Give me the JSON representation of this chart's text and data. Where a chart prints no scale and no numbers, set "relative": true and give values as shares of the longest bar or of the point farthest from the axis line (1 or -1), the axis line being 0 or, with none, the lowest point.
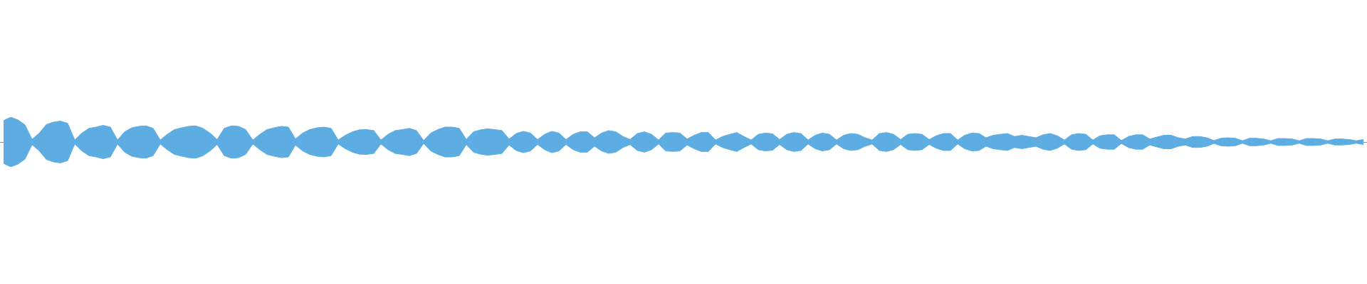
{
  "chart_data": {
    "type": "area",
    "relative": true,
    "marker": "none",
    "categories": [
      null,
      null,
      null,
      null,
      null,
      null,
      null,
      null,
      null,
      null,
      null,
      null,
      null,
      null,
      null,
      null,
      null,
      null,
      null,
      null,
      null,
      null,
      null,
      null,
      null,
      null,
      null,
      null,
      null,
      null,
      null,
      null,
      null,
      null,
      null,
      null,
      null,
      null,
      null,
      null,
      null,
      null,
      null,
      null,
      null,
      null,
      null,
      null,
      null,
      null,
      null,
      null,
      null,
      null,
      null,
      null,
      null,
      null,
      null,
      null,
      null,
      null,
      null,
      null,
      null,
      null,
      null,
      null,
      null,
      null,
      null,
      null,
      null,
      null,
      null,
      null,
      null,
      null,
      null,
      null,
      null,
      null,
      null,
      null,
      null,
      null,
      null,
      null,
      null,
      null,
      null,
      null,
      null,
      null,
      null,
      null,
      null,
      null,
      null,
      null,
      null,
      null,
      null,
      null,
      null,
      null,
      null,
      null,
      null,
      null,
      null,
      null,
      null,
      null,
      null,
      null,
      null,
      null,
      null,
      null,
      null,
      null,
      null,
      null,
      null,
      null,
      null,
      null,
      null,
      null,
      null,
      null,
      null,
      null,
      null,
      null,
      null,
      null,
      null,
      null,
      null,
      null,
      null,
      null,
      null,
      null,
      null,
      null,
      null,
      null,
      null,
      null,
      null,
      null,
      null,
      null,
      null,
      null,
      null,
      null,
      null,
      null,
      null,
      null,
      null,
      null,
      null,
      null,
      null,
      null,
      null,
      null,
      null,
      null,
      null,
      null,
      null,
      null,
      null,
      null,
      null,
      null,
      null,
      null,
      null,
      null,
      null,
      null,
      null,
      null,
      null,
      null
    ],
    "series": [
      {
        "color": "#5dade2",
        "values": [
          0.86,
          1.0,
          0.89,
          0.69,
          0.11,
          0.35,
          0.7,
          0.8,
          0.84,
          0.75,
          0.08,
          0.36,
          0.55,
          0.6,
          0.67,
          0.6,
          0.08,
          0.41,
          0.57,
          0.63,
          0.65,
          0.55,
          0.08,
          0.31,
          0.5,
          0.57,
          0.63,
          0.65,
          0.55,
          0.36,
          0.1,
          0.55,
          0.65,
          0.63,
          0.5,
          0.08,
          0.31,
          0.5,
          0.57,
          0.63,
          0.6,
          0.12,
          0.36,
          0.5,
          0.57,
          0.6,
          0.55,
          0.08,
          0.27,
          0.41,
          0.49,
          0.5,
          0.46,
          0.08,
          0.31,
          0.46,
          0.5,
          0.55,
          0.46,
          0.06,
          0.36,
          0.5,
          0.6,
          0.6,
          0.55,
          0.1,
          0.41,
          0.49,
          0.53,
          0.5,
          0.46,
          0.12,
          0.34,
          0.43,
          0.36,
          0.1,
          0.31,
          0.43,
          0.36,
          0.1,
          0.31,
          0.41,
          0.41,
          0.17,
          0.36,
          0.46,
          0.41,
          0.22,
          0.1,
          0.34,
          0.41,
          0.31,
          0.08,
          0.36,
          0.38,
          0.36,
          0.12,
          0.27,
          0.38,
          0.38,
          0.08,
          0.22,
          0.31,
          0.38,
          0.22,
          0.08,
          0.31,
          0.36,
          0.33,
          0.1,
          0.31,
          0.38,
          0.34,
          0.08,
          0.27,
          0.36,
          0.31,
          0.08,
          0.27,
          0.34,
          0.31,
          0.17,
          0.08,
          0.34,
          0.38,
          0.31,
          0.1,
          0.31,
          0.34,
          0.31,
          0.1,
          0.25,
          0.34,
          0.34,
          0.08,
          0.27,
          0.36,
          0.34,
          0.17,
          0.27,
          0.31,
          0.34,
          0.22,
          0.27,
          0.22,
          0.17,
          0.29,
          0.34,
          0.25,
          0.08,
          0.29,
          0.34,
          0.31,
          0.08,
          0.25,
          0.29,
          0.29,
          0.06,
          0.22,
          0.29,
          0.29,
          0.12,
          0.2,
          0.27,
          0.27,
          0.17,
          0.12,
          0.22,
          0.22,
          0.17,
          0.06,
          0.15,
          0.17,
          0.15,
          0.05,
          0.15,
          0.15,
          0.12,
          0.05,
          0.14,
          0.14,
          0.12,
          0.05,
          0.14,
          0.14,
          0.12,
          0.05,
          0.12,
          0.12,
          0.1,
          0.05,
          0.1
        ]
      },
      {
        "color": "#5dade2",
        "values": [
          -0.86,
          -1.0,
          -0.89,
          -0.69,
          -0.11,
          -0.35,
          -0.7,
          -0.8,
          -0.84,
          -0.75,
          -0.08,
          -0.36,
          -0.55,
          -0.6,
          -0.67,
          -0.6,
          -0.08,
          -0.41,
          -0.57,
          -0.63,
          -0.65,
          -0.55,
          -0.08,
          -0.31,
          -0.5,
          -0.57,
          -0.63,
          -0.65,
          -0.55,
          -0.36,
          -0.1,
          -0.55,
          -0.65,
          -0.63,
          -0.5,
          -0.08,
          -0.31,
          -0.5,
          -0.57,
          -0.63,
          -0.6,
          -0.12,
          -0.36,
          -0.5,
          -0.57,
          -0.6,
          -0.55,
          -0.08,
          -0.27,
          -0.41,
          -0.49,
          -0.5,
          -0.46,
          -0.08,
          -0.31,
          -0.46,
          -0.5,
          -0.55,
          -0.46,
          -0.06,
          -0.36,
          -0.5,
          -0.6,
          -0.6,
          -0.55,
          -0.1,
          -0.41,
          -0.49,
          -0.53,
          -0.5,
          -0.46,
          -0.12,
          -0.34,
          -0.43,
          -0.36,
          -0.1,
          -0.31,
          -0.43,
          -0.36,
          -0.1,
          -0.31,
          -0.41,
          -0.41,
          -0.17,
          -0.36,
          -0.46,
          -0.41,
          -0.22,
          -0.1,
          -0.34,
          -0.41,
          -0.31,
          -0.08,
          -0.36,
          -0.38,
          -0.36,
          -0.12,
          -0.27,
          -0.38,
          -0.38,
          -0.08,
          -0.22,
          -0.31,
          -0.38,
          -0.22,
          -0.08,
          -0.31,
          -0.36,
          -0.33,
          -0.1,
          -0.31,
          -0.38,
          -0.34,
          -0.08,
          -0.27,
          -0.36,
          -0.31,
          -0.08,
          -0.27,
          -0.34,
          -0.31,
          -0.17,
          -0.08,
          -0.34,
          -0.38,
          -0.31,
          -0.1,
          -0.31,
          -0.34,
          -0.31,
          -0.1,
          -0.25,
          -0.34,
          -0.34,
          -0.08,
          -0.27,
          -0.36,
          -0.34,
          -0.17,
          -0.27,
          -0.31,
          -0.34,
          -0.22,
          -0.27,
          -0.22,
          -0.17,
          -0.29,
          -0.34,
          -0.25,
          -0.08,
          -0.29,
          -0.34,
          -0.31,
          -0.08,
          -0.25,
          -0.29,
          -0.29,
          -0.06,
          -0.22,
          -0.29,
          -0.29,
          -0.12,
          -0.2,
          -0.27,
          -0.27,
          -0.17,
          -0.12,
          -0.22,
          -0.22,
          -0.17,
          -0.06,
          -0.15,
          -0.17,
          -0.15,
          -0.05,
          -0.15,
          -0.15,
          -0.12,
          -0.05,
          -0.14,
          -0.14,
          -0.12,
          -0.05,
          -0.14,
          -0.14,
          -0.12,
          -0.05,
          -0.12,
          -0.12,
          -0.1,
          -0.05,
          -0.1
        ]
      }
    ]
  }
}
